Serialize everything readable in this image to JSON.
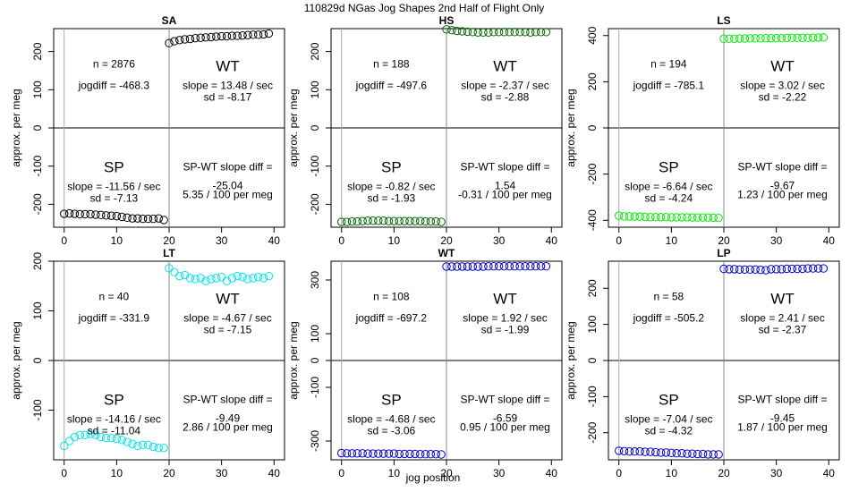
{
  "figure": {
    "title": "110829d   NGas Jog Shapes 2nd Half of Flight Only",
    "xlabel": "jog position",
    "ylabel": "approx. per meg"
  },
  "chart_data": [
    {
      "type": "scatter",
      "title": "SA",
      "ylim": [
        -260,
        260
      ],
      "yticks": [
        -200,
        -100,
        0,
        100,
        200
      ],
      "xticks": [
        0,
        10,
        20,
        30,
        40
      ],
      "color": "#000000",
      "stats": {
        "n": "n = 2876",
        "jogdiff": "jogdiff = -468.3",
        "wt_label": "WT",
        "wt_slope": "slope = 13.48 / sec",
        "wt_sd": "sd = -8.17",
        "sp_label": "SP",
        "sp_slope": "slope = -11.56 / sec",
        "sp_sd": "sd = -7.13",
        "diff_label": "SP-WT slope diff =",
        "diff_value": "-25.04",
        "diff_permeg": "5.35 / 100 per meg"
      },
      "sp_points": [
        [
          0,
          -225
        ],
        [
          1,
          -224
        ],
        [
          2,
          -225
        ],
        [
          3,
          -226
        ],
        [
          4,
          -226
        ],
        [
          5,
          -226
        ],
        [
          6,
          -227
        ],
        [
          7,
          -228
        ],
        [
          8,
          -229
        ],
        [
          9,
          -230
        ],
        [
          10,
          -231
        ],
        [
          11,
          -233
        ],
        [
          12,
          -235
        ],
        [
          13,
          -237
        ],
        [
          14,
          -237
        ],
        [
          15,
          -238
        ],
        [
          16,
          -238
        ],
        [
          17,
          -238
        ],
        [
          18,
          -237
        ],
        [
          19,
          -241
        ]
      ],
      "wt_points": [
        [
          20,
          222
        ],
        [
          21,
          227
        ],
        [
          22,
          230
        ],
        [
          23,
          232
        ],
        [
          24,
          233
        ],
        [
          25,
          235
        ],
        [
          26,
          236
        ],
        [
          27,
          237
        ],
        [
          28,
          238
        ],
        [
          29,
          239
        ],
        [
          30,
          240
        ],
        [
          31,
          240
        ],
        [
          32,
          241
        ],
        [
          33,
          241
        ],
        [
          34,
          242
        ],
        [
          35,
          243
        ],
        [
          36,
          244
        ],
        [
          37,
          244
        ],
        [
          38,
          245
        ],
        [
          39,
          247
        ]
      ]
    },
    {
      "type": "scatter",
      "title": "HS",
      "ylim": [
        -260,
        260
      ],
      "yticks": [
        -200,
        -100,
        0,
        100,
        200
      ],
      "xticks": [
        0,
        10,
        20,
        30,
        40
      ],
      "color": "#006400",
      "stats": {
        "n": "n = 188",
        "jogdiff": "jogdiff = -497.6",
        "wt_label": "WT",
        "wt_slope": "slope = -2.37 / sec",
        "wt_sd": "sd = -2.88",
        "sp_label": "SP",
        "sp_slope": "slope = -0.82 / sec",
        "sp_sd": "sd = -1.93",
        "diff_label": "SP-WT slope diff =",
        "diff_value": "1.54",
        "diff_permeg": "-0.31 / 100 per meg"
      },
      "sp_points": [
        [
          0,
          -246
        ],
        [
          1,
          -246
        ],
        [
          2,
          -245
        ],
        [
          3,
          -245
        ],
        [
          4,
          -244
        ],
        [
          5,
          -243
        ],
        [
          6,
          -243
        ],
        [
          7,
          -243
        ],
        [
          8,
          -243
        ],
        [
          9,
          -244
        ],
        [
          10,
          -244
        ],
        [
          11,
          -244
        ],
        [
          12,
          -244
        ],
        [
          13,
          -244
        ],
        [
          14,
          -244
        ],
        [
          15,
          -244
        ],
        [
          16,
          -245
        ],
        [
          17,
          -245
        ],
        [
          18,
          -245
        ],
        [
          19,
          -246
        ]
      ],
      "wt_points": [
        [
          20,
          258
        ],
        [
          21,
          256
        ],
        [
          22,
          254
        ],
        [
          23,
          253
        ],
        [
          24,
          252
        ],
        [
          25,
          251
        ],
        [
          26,
          250
        ],
        [
          27,
          250
        ],
        [
          28,
          250
        ],
        [
          29,
          251
        ],
        [
          30,
          251
        ],
        [
          31,
          251
        ],
        [
          32,
          251
        ],
        [
          33,
          251
        ],
        [
          34,
          251
        ],
        [
          35,
          251
        ],
        [
          36,
          250
        ],
        [
          37,
          251
        ],
        [
          38,
          251
        ],
        [
          39,
          251
        ]
      ]
    },
    {
      "type": "scatter",
      "title": "LS",
      "ylim": [
        -430,
        430
      ],
      "yticks": [
        -400,
        -200,
        0,
        200,
        400
      ],
      "xticks": [
        0,
        10,
        20,
        30,
        40
      ],
      "color": "#00ee00",
      "stats": {
        "n": "n = 194",
        "jogdiff": "jogdiff = -785.1",
        "wt_label": "WT",
        "wt_slope": "slope = 3.02 / sec",
        "wt_sd": "sd = -2.22",
        "sp_label": "SP",
        "sp_slope": "slope = -6.64 / sec",
        "sp_sd": "sd = -4.24",
        "diff_label": "SP-WT slope diff =",
        "diff_value": "-9.67",
        "diff_permeg": "1.23 / 100 per meg"
      },
      "sp_points": [
        [
          0,
          -380
        ],
        [
          1,
          -383
        ],
        [
          2,
          -383
        ],
        [
          3,
          -384
        ],
        [
          4,
          -384
        ],
        [
          5,
          -385
        ],
        [
          6,
          -386
        ],
        [
          7,
          -386
        ],
        [
          8,
          -386
        ],
        [
          9,
          -386
        ],
        [
          10,
          -387
        ],
        [
          11,
          -387
        ],
        [
          12,
          -387
        ],
        [
          13,
          -387
        ],
        [
          14,
          -388
        ],
        [
          15,
          -388
        ],
        [
          16,
          -388
        ],
        [
          17,
          -388
        ],
        [
          18,
          -389
        ],
        [
          19,
          -390
        ]
      ],
      "wt_points": [
        [
          20,
          386
        ],
        [
          21,
          386
        ],
        [
          22,
          386
        ],
        [
          23,
          387
        ],
        [
          24,
          387
        ],
        [
          25,
          388
        ],
        [
          26,
          388
        ],
        [
          27,
          388
        ],
        [
          28,
          389
        ],
        [
          29,
          389
        ],
        [
          30,
          389
        ],
        [
          31,
          389
        ],
        [
          32,
          390
        ],
        [
          33,
          390
        ],
        [
          34,
          390
        ],
        [
          35,
          390
        ],
        [
          36,
          390
        ],
        [
          37,
          391
        ],
        [
          38,
          391
        ],
        [
          39,
          392
        ]
      ]
    },
    {
      "type": "scatter",
      "title": "LT",
      "ylim": [
        -200,
        200
      ],
      "yticks": [
        -100,
        0,
        100,
        200
      ],
      "xticks": [
        0,
        10,
        20,
        30,
        40
      ],
      "color": "#00e5ee",
      "stats": {
        "n": "n = 40",
        "jogdiff": "jogdiff = -331.9",
        "wt_label": "WT",
        "wt_slope": "slope = -4.67 / sec",
        "wt_sd": "sd = -7.15",
        "sp_label": "SP",
        "sp_slope": "slope = -14.16 / sec",
        "sp_sd": "sd = -11.04",
        "diff_label": "SP-WT slope diff =",
        "diff_value": "-9.49",
        "diff_permeg": "2.86 / 100 per meg"
      },
      "sp_points": [
        [
          0,
          -172
        ],
        [
          1,
          -162
        ],
        [
          2,
          -154
        ],
        [
          3,
          -150
        ],
        [
          4,
          -150
        ],
        [
          5,
          -148
        ],
        [
          6,
          -150
        ],
        [
          7,
          -154
        ],
        [
          8,
          -156
        ],
        [
          9,
          -156
        ],
        [
          10,
          -158
        ],
        [
          11,
          -160
        ],
        [
          12,
          -164
        ],
        [
          13,
          -168
        ],
        [
          14,
          -172
        ],
        [
          15,
          -170
        ],
        [
          16,
          -170
        ],
        [
          17,
          -174
        ],
        [
          18,
          -176
        ],
        [
          19,
          -176
        ]
      ],
      "wt_points": [
        [
          20,
          186
        ],
        [
          21,
          178
        ],
        [
          22,
          170
        ],
        [
          23,
          172
        ],
        [
          24,
          166
        ],
        [
          25,
          164
        ],
        [
          26,
          166
        ],
        [
          27,
          160
        ],
        [
          28,
          164
        ],
        [
          29,
          166
        ],
        [
          30,
          168
        ],
        [
          31,
          160
        ],
        [
          32,
          166
        ],
        [
          33,
          170
        ],
        [
          34,
          168
        ],
        [
          35,
          164
        ],
        [
          36,
          166
        ],
        [
          37,
          168
        ],
        [
          38,
          166
        ],
        [
          39,
          170
        ]
      ]
    },
    {
      "type": "scatter",
      "title": "WT",
      "ylim": [
        -370,
        370
      ],
      "yticks": [
        -300,
        -100,
        0,
        100,
        300
      ],
      "xticks": [
        0,
        10,
        20,
        30,
        40
      ],
      "color": "#0000cd",
      "stats": {
        "n": "n = 108",
        "jogdiff": "jogdiff = -697.2",
        "wt_label": "WT",
        "wt_slope": "slope = 1.92 / sec",
        "wt_sd": "sd = -1.99",
        "sp_label": "SP",
        "sp_slope": "slope = -4.68 / sec",
        "sp_sd": "sd = -3.06",
        "diff_label": "SP-WT slope diff =",
        "diff_value": "-6.59",
        "diff_permeg": "0.95 / 100 per meg"
      },
      "sp_points": [
        [
          0,
          -345
        ],
        [
          1,
          -346
        ],
        [
          2,
          -346
        ],
        [
          3,
          -346
        ],
        [
          4,
          -346
        ],
        [
          5,
          -347
        ],
        [
          6,
          -347
        ],
        [
          7,
          -347
        ],
        [
          8,
          -347
        ],
        [
          9,
          -347
        ],
        [
          10,
          -347
        ],
        [
          11,
          -348
        ],
        [
          12,
          -348
        ],
        [
          13,
          -348
        ],
        [
          14,
          -348
        ],
        [
          15,
          -349
        ],
        [
          16,
          -349
        ],
        [
          17,
          -349
        ],
        [
          18,
          -349
        ],
        [
          19,
          -350
        ]
      ],
      "wt_points": [
        [
          20,
          350
        ],
        [
          21,
          350
        ],
        [
          22,
          350
        ],
        [
          23,
          350
        ],
        [
          24,
          350
        ],
        [
          25,
          350
        ],
        [
          26,
          350
        ],
        [
          27,
          350
        ],
        [
          28,
          351
        ],
        [
          29,
          351
        ],
        [
          30,
          351
        ],
        [
          31,
          351
        ],
        [
          32,
          351
        ],
        [
          33,
          351
        ],
        [
          34,
          351
        ],
        [
          35,
          351
        ],
        [
          36,
          351
        ],
        [
          37,
          351
        ],
        [
          38,
          351
        ],
        [
          39,
          351
        ]
      ]
    },
    {
      "type": "scatter",
      "title": "LP",
      "ylim": [
        -275,
        275
      ],
      "yticks": [
        -200,
        -100,
        0,
        100,
        200
      ],
      "xticks": [
        0,
        10,
        20,
        30,
        40
      ],
      "color": "#0000cd",
      "stats": {
        "n": "n = 58",
        "jogdiff": "jogdiff = -505.2",
        "wt_label": "WT",
        "wt_slope": "slope = 2.41 / sec",
        "wt_sd": "sd = -2.37",
        "sp_label": "SP",
        "sp_slope": "slope = -7.04 / sec",
        "sp_sd": "sd = -4.32",
        "diff_label": "SP-WT slope diff =",
        "diff_value": "-9.45",
        "diff_permeg": "1.87 / 100 per meg"
      },
      "sp_points": [
        [
          0,
          -250
        ],
        [
          1,
          -251
        ],
        [
          2,
          -252
        ],
        [
          3,
          -252
        ],
        [
          4,
          -252
        ],
        [
          5,
          -253
        ],
        [
          6,
          -253
        ],
        [
          7,
          -254
        ],
        [
          8,
          -255
        ],
        [
          9,
          -255
        ],
        [
          10,
          -256
        ],
        [
          11,
          -257
        ],
        [
          12,
          -257
        ],
        [
          13,
          -258
        ],
        [
          14,
          -258
        ],
        [
          15,
          -259
        ],
        [
          16,
          -259
        ],
        [
          17,
          -260
        ],
        [
          18,
          -260
        ],
        [
          19,
          -260
        ]
      ],
      "wt_points": [
        [
          20,
          254
        ],
        [
          21,
          253
        ],
        [
          22,
          253
        ],
        [
          23,
          252
        ],
        [
          24,
          252
        ],
        [
          25,
          252
        ],
        [
          26,
          252
        ],
        [
          27,
          251
        ],
        [
          28,
          250
        ],
        [
          29,
          253
        ],
        [
          30,
          253
        ],
        [
          31,
          253
        ],
        [
          32,
          254
        ],
        [
          33,
          254
        ],
        [
          34,
          254
        ],
        [
          35,
          254
        ],
        [
          36,
          255
        ],
        [
          37,
          255
        ],
        [
          38,
          255
        ],
        [
          39,
          255
        ]
      ]
    }
  ]
}
